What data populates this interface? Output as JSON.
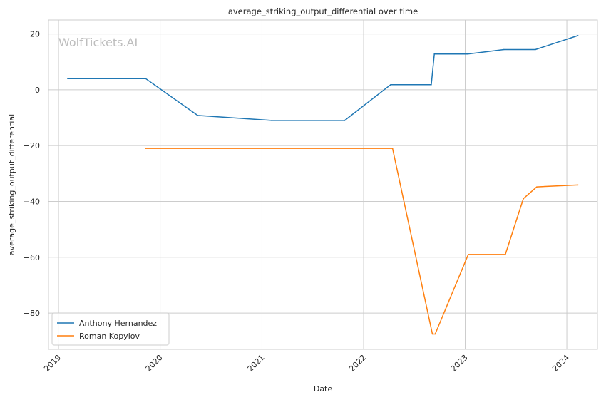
{
  "chart_data": {
    "type": "line",
    "title": "average_striking_output_differential over time",
    "xlabel": "Date",
    "ylabel": "average_striking_output_differential",
    "watermark": "WolfTickets.AI",
    "xlim": [
      "2018-11-26",
      "2024-04-20"
    ],
    "ylim": [
      -93,
      25
    ],
    "x_ticks": [
      {
        "date": "2019-01-01",
        "label": "2019"
      },
      {
        "date": "2020-01-01",
        "label": "2020"
      },
      {
        "date": "2021-01-01",
        "label": "2021"
      },
      {
        "date": "2022-01-01",
        "label": "2022"
      },
      {
        "date": "2023-01-01",
        "label": "2023"
      },
      {
        "date": "2024-01-01",
        "label": "2024"
      }
    ],
    "y_ticks": [
      {
        "value": 20,
        "label": "20"
      },
      {
        "value": 0,
        "label": "0"
      },
      {
        "value": -20,
        "label": "−20"
      },
      {
        "value": -40,
        "label": "−40"
      },
      {
        "value": -60,
        "label": "−60"
      },
      {
        "value": -80,
        "label": "−80"
      }
    ],
    "grid": true,
    "legend_position": "bottom-left",
    "series": [
      {
        "name": "Anthony Hernandez",
        "color": "#1f77b4",
        "points": [
          {
            "x": "2019-02-03",
            "y": 4.0
          },
          {
            "x": "2019-11-10",
            "y": 4.0
          },
          {
            "x": "2020-05-15",
            "y": -9.2
          },
          {
            "x": "2021-02-05",
            "y": -11.0
          },
          {
            "x": "2021-10-25",
            "y": -11.0
          },
          {
            "x": "2022-04-08",
            "y": 1.8
          },
          {
            "x": "2022-09-01",
            "y": 1.8
          },
          {
            "x": "2022-09-12",
            "y": 12.8
          },
          {
            "x": "2023-01-10",
            "y": 12.8
          },
          {
            "x": "2023-05-20",
            "y": 14.4
          },
          {
            "x": "2023-09-10",
            "y": 14.4
          },
          {
            "x": "2024-02-10",
            "y": 19.4
          }
        ]
      },
      {
        "name": "Roman Kopylov",
        "color": "#ff7f0e",
        "points": [
          {
            "x": "2019-11-10",
            "y": -21.0
          },
          {
            "x": "2022-04-15",
            "y": -21.0
          },
          {
            "x": "2022-09-05",
            "y": -87.5
          },
          {
            "x": "2022-09-15",
            "y": -87.5
          },
          {
            "x": "2023-01-12",
            "y": -59.0
          },
          {
            "x": "2023-05-25",
            "y": -59.0
          },
          {
            "x": "2023-07-29",
            "y": -39.0
          },
          {
            "x": "2023-09-15",
            "y": -34.8
          },
          {
            "x": "2024-02-10",
            "y": -34.1
          }
        ]
      }
    ]
  }
}
